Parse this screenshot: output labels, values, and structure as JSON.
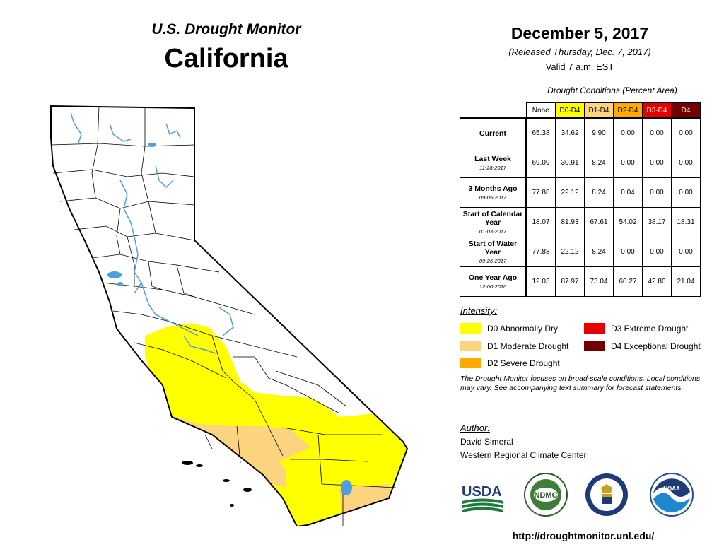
{
  "header": {
    "monitor_title": "U.S. Drought Monitor",
    "state": "California",
    "date": "December 5, 2017",
    "released": "(Released Thursday, Dec. 7, 2017)",
    "valid": "Valid 7 a.m. EST"
  },
  "conditions": {
    "title": "Drought Conditions (Percent Area)",
    "columns": [
      "None",
      "D0-D4",
      "D1-D4",
      "D2-D4",
      "D3-D4",
      "D4"
    ],
    "column_colors": [
      "#ffffff",
      "#ffff00",
      "#fcd37f",
      "#ffaa00",
      "#e60000",
      "#730000"
    ],
    "column_text_colors": [
      "#000000",
      "#000000",
      "#000000",
      "#000000",
      "#ffffff",
      "#ffffff"
    ],
    "rows": [
      {
        "label": "Current",
        "date": "",
        "values": [
          "65.38",
          "34.62",
          "9.90",
          "0.00",
          "0.00",
          "0.00"
        ]
      },
      {
        "label": "Last Week",
        "date": "11-28-2017",
        "values": [
          "69.09",
          "30.91",
          "8.24",
          "0.00",
          "0.00",
          "0.00"
        ]
      },
      {
        "label": "3 Months Ago",
        "date": "09-05-2017",
        "values": [
          "77.88",
          "22.12",
          "8.24",
          "0.04",
          "0.00",
          "0.00"
        ]
      },
      {
        "label": "Start of Calendar Year",
        "date": "01-03-2017",
        "values": [
          "18.07",
          "81.93",
          "67.61",
          "54.02",
          "38.17",
          "18.31"
        ]
      },
      {
        "label": "Start of Water Year",
        "date": "09-26-2017",
        "values": [
          "77.88",
          "22.12",
          "8.24",
          "0.00",
          "0.00",
          "0.00"
        ]
      },
      {
        "label": "One Year Ago",
        "date": "12-06-2016",
        "values": [
          "12.03",
          "87.97",
          "73.04",
          "60.27",
          "42.80",
          "21.04"
        ]
      }
    ]
  },
  "intensity": {
    "title": "Intensity:",
    "items": [
      {
        "key": "d0",
        "label": "D0 Abnormally Dry",
        "color": "#ffff00"
      },
      {
        "key": "d1",
        "label": "D1 Moderate Drought",
        "color": "#fcd37f"
      },
      {
        "key": "d2",
        "label": "D2 Severe Drought",
        "color": "#ffaa00"
      },
      {
        "key": "d3",
        "label": "D3 Extreme Drought",
        "color": "#e60000"
      },
      {
        "key": "d4",
        "label": "D4 Exceptional Drought",
        "color": "#730000"
      }
    ]
  },
  "disclaimer": "The Drought Monitor focuses on broad-scale conditions. Local conditions may vary. See accompanying text summary for forecast statements.",
  "author": {
    "title": "Author:",
    "name": "David Simeral",
    "org": "Western Regional Climate Center"
  },
  "logos": {
    "usda": "USDA",
    "ndmc": "NDMC",
    "noaa": "NOAA"
  },
  "map": {
    "water_color": "#4d9fe0",
    "county_line_color": "#000000"
  },
  "url": "http://droughtmonitor.unl.edu/"
}
